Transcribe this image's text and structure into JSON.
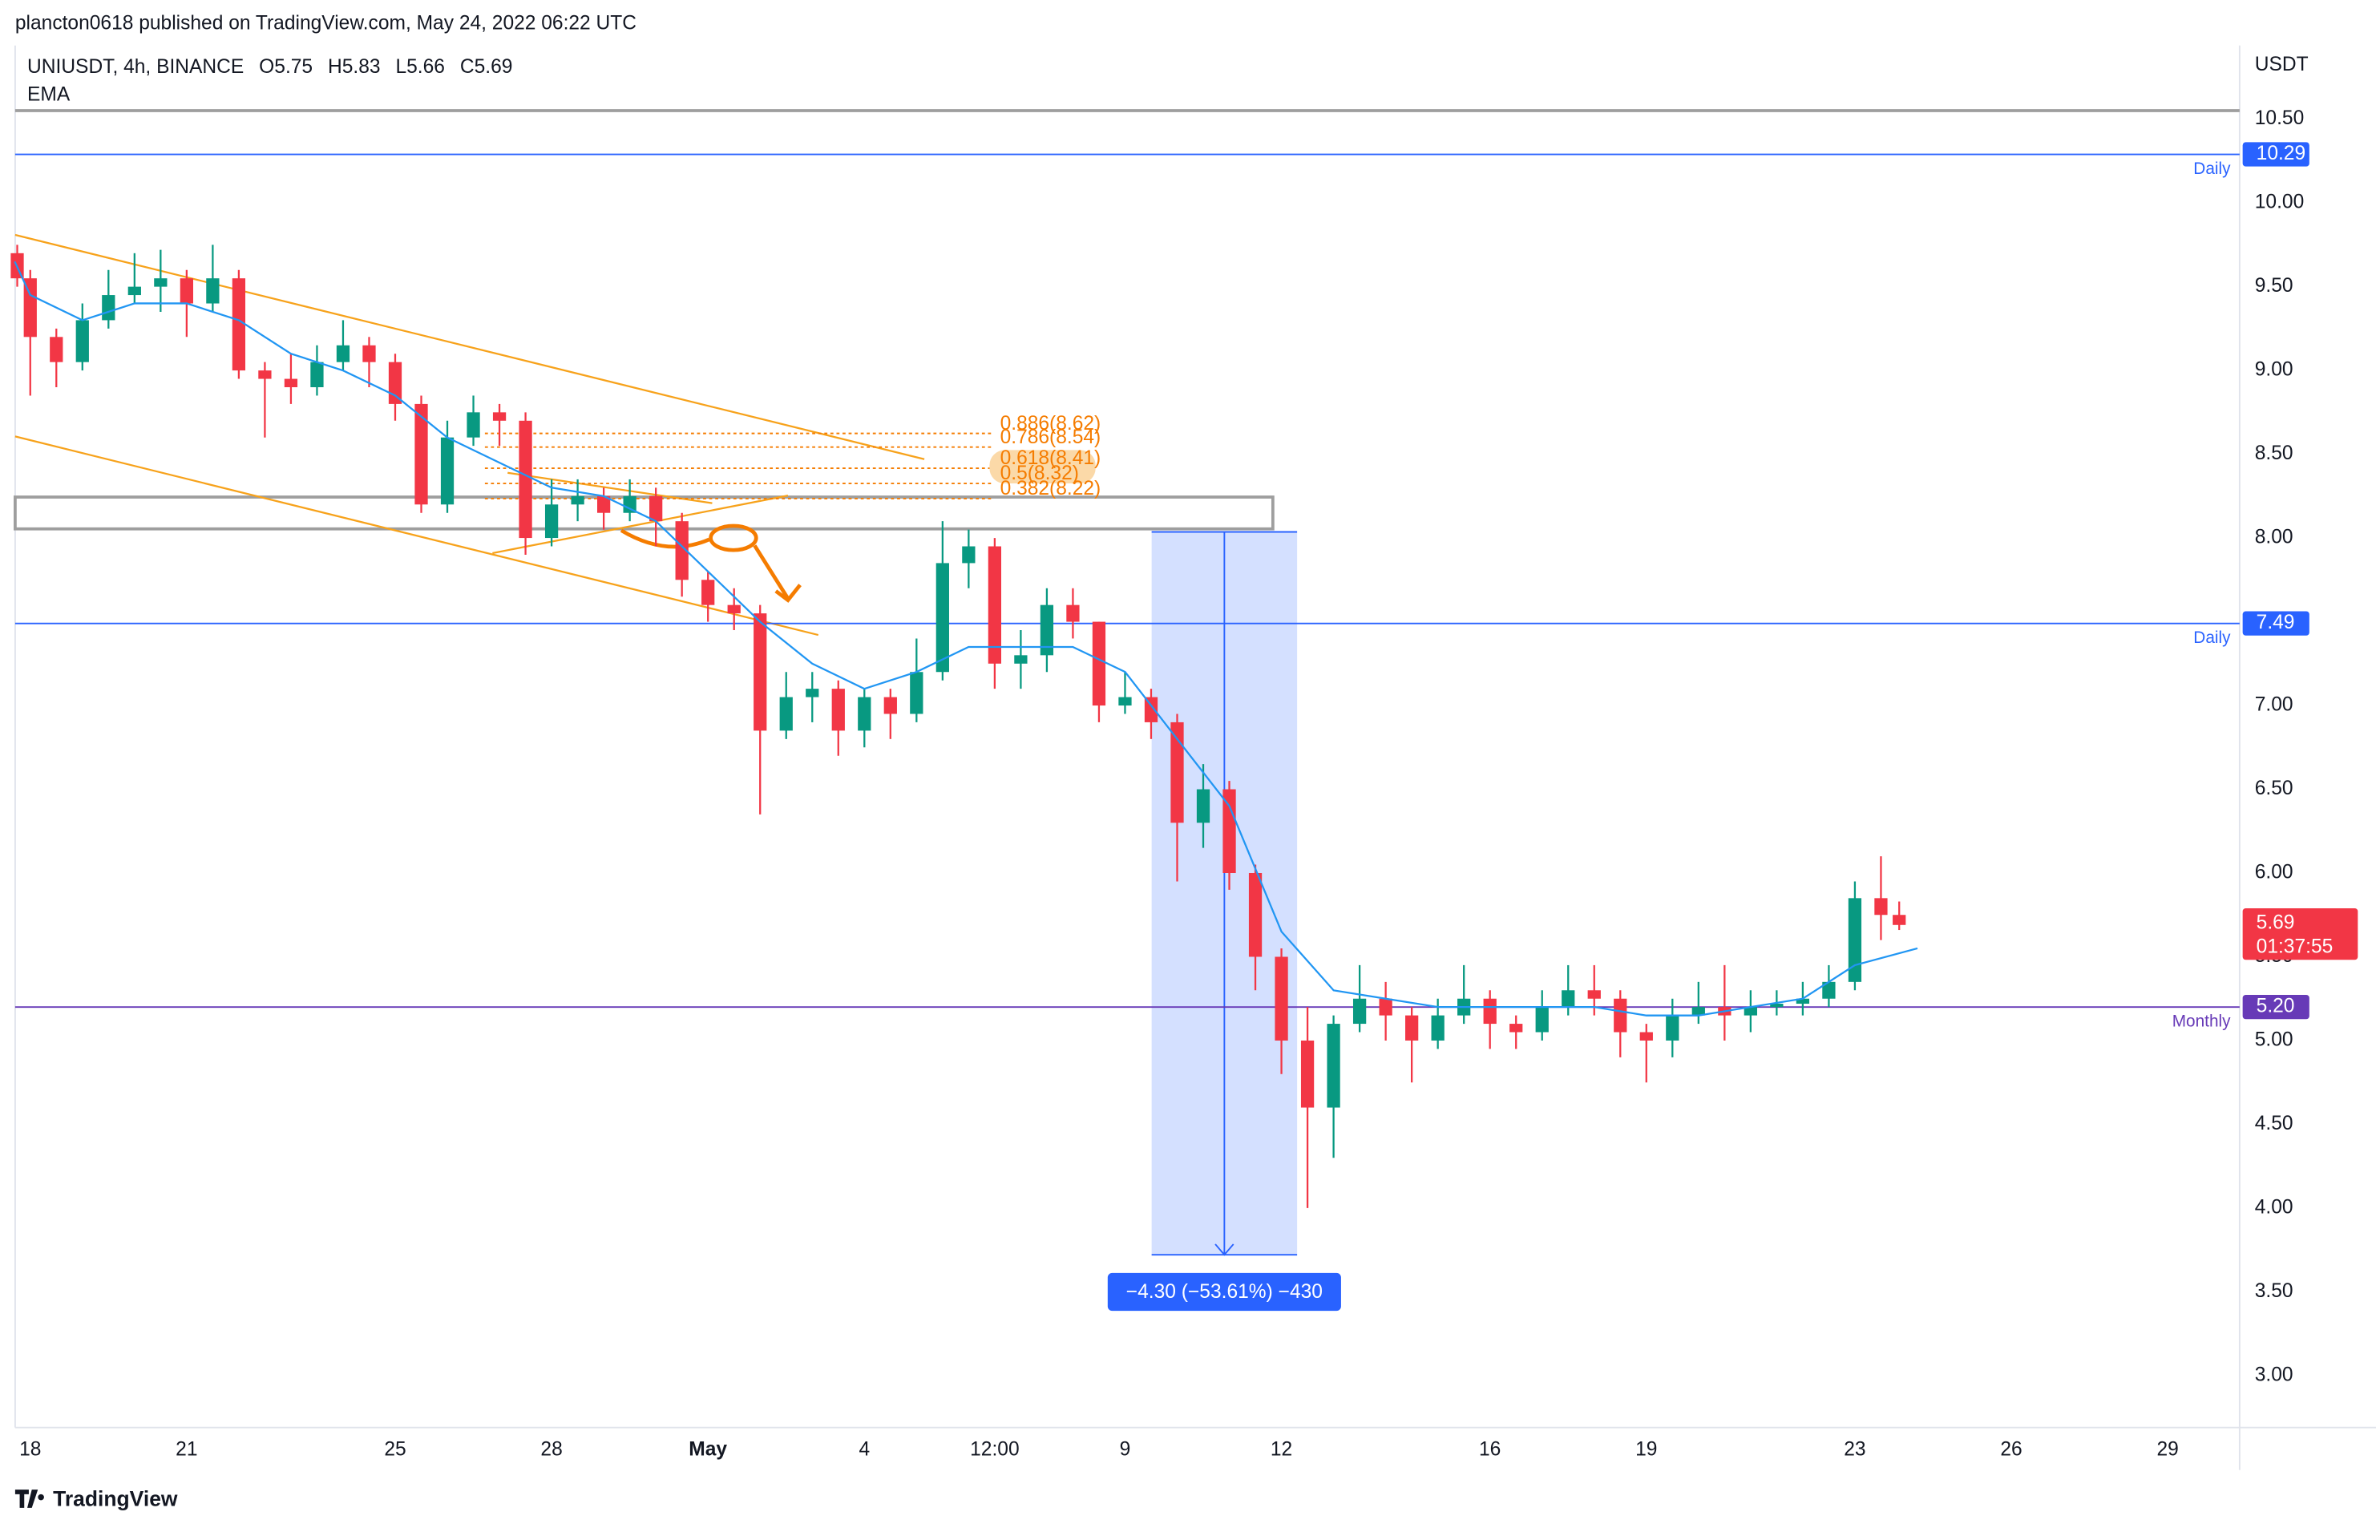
{
  "header": {
    "attribution": "plancton0618 published on TradingView.com, May 24, 2022 06:22 UTC",
    "brand": "TradingView"
  },
  "chart_data": {
    "type": "candlestick",
    "symbol": "UNIUSDT, 4h, BINANCE",
    "ohlc": [
      {
        "label": "O",
        "value": 5.75
      },
      {
        "label": "H",
        "value": 5.83
      },
      {
        "label": "L",
        "value": 5.66
      },
      {
        "label": "C",
        "value": 5.69
      }
    ],
    "indicator": "EMA",
    "currency": "USDT",
    "countdown": "01:37:55",
    "up_color": "#089981",
    "down_color": "#f23645",
    "ema_color": "#2196f3",
    "xlim": [
      -0.29,
      42.38
    ],
    "ylim": [
      2.69,
      10.94
    ],
    "xticks": [
      {
        "value": 0,
        "label": "18"
      },
      {
        "value": 3,
        "label": "21"
      },
      {
        "value": 7,
        "label": "25"
      },
      {
        "value": 10,
        "label": "28"
      },
      {
        "value": 13,
        "label": "May"
      },
      {
        "value": 16,
        "label": "4"
      },
      {
        "value": 18.5,
        "label": "12:00"
      },
      {
        "value": 21,
        "label": "9"
      },
      {
        "value": 24,
        "label": "12"
      },
      {
        "value": 28,
        "label": "16"
      },
      {
        "value": 31,
        "label": "19"
      },
      {
        "value": 35,
        "label": "23"
      },
      {
        "value": 38,
        "label": "26"
      },
      {
        "value": 41,
        "label": "29"
      }
    ],
    "yticks": [
      {
        "value": 3,
        "label": "3.00"
      },
      {
        "value": 3.5,
        "label": "3.50"
      },
      {
        "value": 4,
        "label": "4.00"
      },
      {
        "value": 4.5,
        "label": "4.50"
      },
      {
        "value": 5,
        "label": "5.00"
      },
      {
        "value": 5.5,
        "label": "5.50"
      },
      {
        "value": 6,
        "label": "6.00"
      },
      {
        "value": 6.5,
        "label": "6.50"
      },
      {
        "value": 7,
        "label": "7.00"
      },
      {
        "value": 7.5,
        "label": "7.50"
      },
      {
        "value": 8,
        "label": "8.00"
      },
      {
        "value": 8.5,
        "label": "8.50"
      },
      {
        "value": 9,
        "label": "9.00"
      },
      {
        "value": 9.5,
        "label": "9.50"
      },
      {
        "value": 10,
        "label": "10.00"
      },
      {
        "value": 10.5,
        "label": "10.50"
      }
    ],
    "candles": {
      "x": [
        -0.25,
        0,
        0.5,
        1,
        1.5,
        2,
        2.5,
        3,
        3.5,
        4,
        4.5,
        5,
        5.5,
        6,
        6.5,
        7,
        7.5,
        8,
        8.5,
        9,
        9.5,
        10,
        10.5,
        11,
        11.5,
        12,
        12.5,
        13,
        13.5,
        14,
        14.5,
        15,
        15.5,
        16,
        16.5,
        17,
        17.5,
        18,
        18.5,
        19,
        19.5,
        20,
        20.5,
        21,
        21.5,
        22,
        22.5,
        23,
        23.5,
        24,
        24.5,
        25,
        25.5,
        26,
        26.5,
        27,
        27.5,
        28,
        28.5,
        29,
        29.5,
        30,
        30.5,
        31,
        31.5,
        32,
        32.5,
        33,
        33.5,
        34,
        34.5,
        35,
        35.5,
        35.85
      ],
      "open": [
        9.7,
        9.55,
        9.2,
        9.05,
        9.3,
        9.45,
        9.5,
        9.55,
        9.4,
        9.55,
        9.0,
        8.95,
        8.9,
        9.05,
        9.15,
        9.05,
        8.8,
        8.2,
        8.6,
        8.75,
        8.7,
        8.0,
        8.2,
        8.25,
        8.15,
        8.25,
        8.1,
        7.75,
        7.6,
        7.55,
        6.85,
        7.05,
        7.1,
        6.85,
        7.05,
        6.95,
        7.2,
        7.85,
        7.95,
        7.25,
        7.3,
        7.6,
        7.5,
        7.0,
        7.05,
        6.9,
        6.3,
        6.5,
        6.0,
        5.5,
        5.0,
        4.6,
        5.1,
        5.25,
        5.15,
        5.0,
        5.15,
        5.25,
        5.1,
        5.05,
        5.2,
        5.3,
        5.25,
        5.05,
        5.0,
        5.15,
        5.2,
        5.15,
        5.2,
        5.22,
        5.25,
        5.35,
        5.85,
        5.75
      ],
      "high": [
        9.75,
        9.6,
        9.25,
        9.4,
        9.6,
        9.7,
        9.72,
        9.6,
        9.75,
        9.6,
        9.05,
        9.1,
        9.15,
        9.3,
        9.2,
        9.1,
        8.85,
        8.7,
        8.85,
        8.8,
        8.75,
        8.35,
        8.35,
        8.3,
        8.35,
        8.3,
        8.15,
        7.8,
        7.7,
        7.6,
        7.2,
        7.2,
        7.15,
        7.1,
        7.1,
        7.4,
        8.1,
        8.05,
        8.0,
        7.45,
        7.7,
        7.7,
        7.5,
        7.2,
        7.1,
        6.95,
        6.65,
        6.55,
        6.05,
        5.55,
        5.2,
        5.15,
        5.45,
        5.35,
        5.2,
        5.25,
        5.45,
        5.3,
        5.15,
        5.3,
        5.45,
        5.45,
        5.3,
        5.1,
        5.25,
        5.35,
        5.45,
        5.3,
        5.3,
        5.35,
        5.45,
        5.95,
        6.1,
        5.83
      ],
      "low": [
        9.5,
        8.85,
        8.9,
        9.0,
        9.25,
        9.4,
        9.35,
        9.2,
        9.35,
        8.95,
        8.6,
        8.8,
        8.85,
        9.0,
        8.9,
        8.7,
        8.15,
        8.15,
        8.55,
        8.55,
        7.9,
        7.95,
        8.1,
        8.05,
        8.1,
        7.95,
        7.65,
        7.5,
        7.45,
        6.35,
        6.8,
        6.9,
        6.7,
        6.75,
        6.8,
        6.9,
        7.15,
        7.7,
        7.1,
        7.1,
        7.2,
        7.4,
        6.9,
        6.95,
        6.8,
        5.95,
        6.15,
        5.9,
        5.3,
        4.8,
        4.0,
        4.3,
        5.05,
        5.0,
        4.75,
        4.95,
        5.1,
        4.95,
        4.95,
        5.0,
        5.15,
        5.15,
        4.9,
        4.75,
        4.9,
        5.1,
        5.0,
        5.05,
        5.15,
        5.15,
        5.2,
        5.3,
        5.6,
        5.66
      ],
      "close": [
        9.55,
        9.2,
        9.05,
        9.3,
        9.45,
        9.5,
        9.55,
        9.4,
        9.55,
        9.0,
        8.95,
        8.9,
        9.05,
        9.15,
        9.05,
        8.8,
        8.2,
        8.6,
        8.75,
        8.7,
        8.0,
        8.2,
        8.25,
        8.15,
        8.25,
        8.1,
        7.75,
        7.6,
        7.55,
        6.85,
        7.05,
        7.1,
        6.85,
        7.05,
        6.95,
        7.2,
        7.85,
        7.95,
        7.25,
        7.3,
        7.6,
        7.5,
        7.0,
        7.05,
        6.9,
        6.3,
        6.5,
        6.0,
        5.5,
        5.0,
        4.6,
        5.1,
        5.25,
        5.15,
        5.0,
        5.15,
        5.25,
        5.1,
        5.05,
        5.2,
        5.3,
        5.25,
        5.05,
        5.0,
        5.15,
        5.2,
        5.15,
        5.2,
        5.22,
        5.25,
        5.35,
        5.85,
        5.75,
        5.69
      ]
    },
    "ema": {
      "x": [
        -0.3,
        0,
        1,
        2,
        3,
        4,
        5,
        6,
        7,
        8,
        9,
        10,
        11,
        12,
        13,
        14,
        15,
        16,
        17,
        18,
        19,
        20,
        21,
        22,
        23,
        24,
        25,
        26,
        27,
        28,
        29,
        30,
        31,
        32,
        33,
        34,
        35,
        36.2
      ],
      "values": [
        9.65,
        9.45,
        9.3,
        9.4,
        9.4,
        9.3,
        9.1,
        9.0,
        8.85,
        8.6,
        8.45,
        8.3,
        8.25,
        8.1,
        7.8,
        7.5,
        7.25,
        7.1,
        7.2,
        7.35,
        7.35,
        7.35,
        7.2,
        6.8,
        6.4,
        5.65,
        5.3,
        5.25,
        5.2,
        5.2,
        5.2,
        5.2,
        5.15,
        5.15,
        5.2,
        5.25,
        5.45,
        5.55
      ]
    },
    "levels": [
      {
        "value": 10.29,
        "label": "10.29",
        "tag": "Daily",
        "color": "#2962ff"
      },
      {
        "value": 7.49,
        "label": "7.49",
        "tag": "Daily",
        "color": "#2962ff"
      },
      {
        "value": 5.2,
        "label": "5.20",
        "tag": "Monthly",
        "color": "#673ab7"
      }
    ],
    "annotations": {
      "fib": [
        "0.886(8.62)",
        "0.786(8.54)",
        "0.618(8.41)",
        "0.5(8.32)",
        "0.382(8.22)"
      ],
      "measure": "−4.30 (−53.61%) −430"
    }
  }
}
